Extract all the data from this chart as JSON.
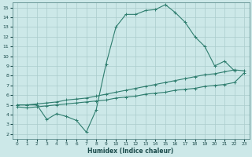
{
  "title": "",
  "xlabel": "Humidex (Indice chaleur)",
  "bg_color": "#cce8e8",
  "line_color": "#2e7d6e",
  "grid_color": "#aacccc",
  "xlim": [
    -0.5,
    23.5
  ],
  "ylim": [
    1.5,
    15.5
  ],
  "xticks": [
    0,
    1,
    2,
    3,
    4,
    5,
    6,
    7,
    8,
    9,
    10,
    11,
    12,
    13,
    14,
    15,
    16,
    17,
    18,
    19,
    20,
    21,
    22,
    23
  ],
  "yticks": [
    2,
    3,
    4,
    5,
    6,
    7,
    8,
    9,
    10,
    11,
    12,
    13,
    14,
    15
  ],
  "line1_x": [
    0,
    1,
    2,
    3,
    4,
    5,
    6,
    7,
    8,
    9,
    10,
    11,
    12,
    13,
    14,
    15,
    16,
    17,
    18,
    19,
    20,
    21,
    22
  ],
  "line1_y": [
    5.0,
    5.0,
    5.0,
    3.5,
    4.1,
    3.8,
    3.4,
    2.2,
    4.5,
    9.2,
    13.0,
    14.3,
    14.3,
    14.7,
    14.8,
    15.3,
    14.5,
    13.5,
    12.0,
    11.0,
    9.0,
    9.5,
    8.5
  ],
  "line2_x": [
    0,
    1,
    2,
    3,
    4,
    5,
    6,
    7,
    8,
    9,
    10,
    11,
    12,
    13,
    14,
    15,
    16,
    17,
    18,
    19,
    20,
    21,
    22,
    23
  ],
  "line2_y": [
    5.0,
    5.0,
    5.1,
    5.2,
    5.3,
    5.5,
    5.6,
    5.7,
    5.9,
    6.1,
    6.3,
    6.5,
    6.7,
    6.9,
    7.1,
    7.3,
    7.5,
    7.7,
    7.9,
    8.1,
    8.2,
    8.4,
    8.6,
    8.5
  ],
  "line3_x": [
    0,
    1,
    2,
    3,
    4,
    5,
    6,
    7,
    8,
    9,
    10,
    11,
    12,
    13,
    14,
    15,
    16,
    17,
    18,
    19,
    20,
    21,
    22,
    23
  ],
  "line3_y": [
    4.8,
    4.7,
    4.8,
    4.9,
    5.0,
    5.1,
    5.2,
    5.3,
    5.4,
    5.5,
    5.7,
    5.8,
    5.9,
    6.1,
    6.2,
    6.3,
    6.5,
    6.6,
    6.7,
    6.9,
    7.0,
    7.1,
    7.3,
    8.3
  ]
}
